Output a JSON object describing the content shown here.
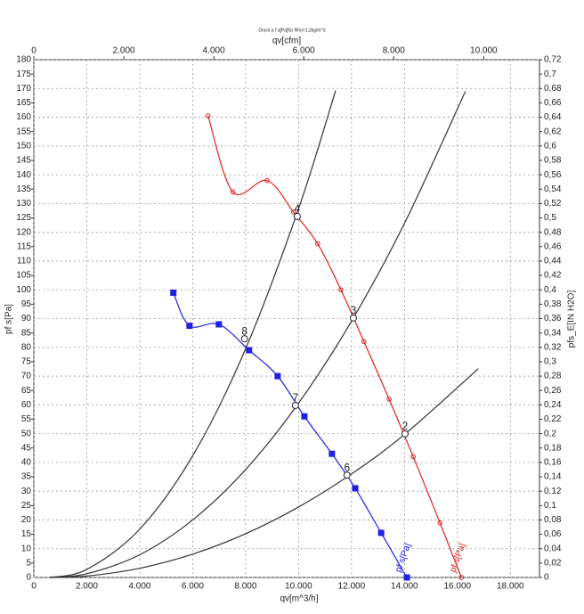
{
  "chart_data": {
    "type": "line",
    "title": "Druck p f a[Pa]für Rho=1,2kg/m^3",
    "xlabel": "qv[m^3/h]",
    "x2label": "qv[cfm]",
    "ylabel": "pf s[Pa]",
    "y2label": "pfs_E[IN H2O]",
    "xlim": [
      0,
      19100
    ],
    "xticks": [
      0,
      {
        "value": 2000,
        "label": "2.000"
      },
      {
        "value": 4000,
        "label": "4.000"
      },
      {
        "value": 6000,
        "label": "6.000"
      },
      {
        "value": 8000,
        "label": "8.000"
      },
      {
        "value": 10000,
        "label": "10.000"
      },
      {
        "value": 12000,
        "label": "12.000"
      },
      {
        "value": 14000,
        "label": "14.000"
      },
      {
        "value": 16000,
        "label": "16.000"
      },
      {
        "value": 18000,
        "label": "18.000"
      }
    ],
    "x2lim": [
      0,
      11240
    ],
    "x2ticks": [
      0,
      {
        "value": 2000,
        "label": "2.000"
      },
      {
        "value": 4000,
        "label": "4.000"
      },
      {
        "value": 6000,
        "label": "6.000"
      },
      {
        "value": 8000,
        "label": "8.000"
      },
      {
        "value": 10000,
        "label": "10.000"
      }
    ],
    "ylim": [
      0,
      180
    ],
    "yticks": [
      0,
      5,
      10,
      15,
      20,
      25,
      30,
      35,
      40,
      45,
      50,
      55,
      60,
      65,
      70,
      75,
      80,
      85,
      90,
      95,
      100,
      105,
      110,
      115,
      120,
      125,
      130,
      135,
      140,
      145,
      150,
      155,
      160,
      165,
      170,
      175,
      180
    ],
    "y2lim": [
      0,
      0.72
    ],
    "y2ticks": [
      0,
      {
        "value": 0.02,
        "label": "0,02"
      },
      {
        "value": 0.04,
        "label": "0,04"
      },
      {
        "value": 0.06,
        "label": "0,06"
      },
      {
        "value": 0.08,
        "label": "0,08"
      },
      {
        "value": 0.1,
        "label": "0,1"
      },
      {
        "value": 0.12,
        "label": "0,12"
      },
      {
        "value": 0.14,
        "label": "0,14"
      },
      {
        "value": 0.16,
        "label": "0,16"
      },
      {
        "value": 0.18,
        "label": "0,18"
      },
      {
        "value": 0.2,
        "label": "0,2"
      },
      {
        "value": 0.22,
        "label": "0,22"
      },
      {
        "value": 0.24,
        "label": "0,24"
      },
      {
        "value": 0.26,
        "label": "0,26"
      },
      {
        "value": 0.28,
        "label": "0,28"
      },
      {
        "value": 0.3,
        "label": "0,3"
      },
      {
        "value": 0.32,
        "label": "0,32"
      },
      {
        "value": 0.34,
        "label": "0,34"
      },
      {
        "value": 0.36,
        "label": "0,36"
      },
      {
        "value": 0.38,
        "label": "0,38"
      },
      {
        "value": 0.4,
        "label": "0,4"
      },
      {
        "value": 0.42,
        "label": "0,42"
      },
      {
        "value": 0.44,
        "label": "0,44"
      },
      {
        "value": 0.46,
        "label": "0,46"
      },
      {
        "value": 0.48,
        "label": "0,48"
      },
      {
        "value": 0.5,
        "label": "0,5"
      },
      {
        "value": 0.52,
        "label": "0,52"
      },
      {
        "value": 0.54,
        "label": "0,54"
      },
      {
        "value": 0.56,
        "label": "0,56"
      },
      {
        "value": 0.58,
        "label": "0,58"
      },
      {
        "value": 0.6,
        "label": "0,6"
      },
      {
        "value": 0.62,
        "label": "0,62"
      },
      {
        "value": 0.64,
        "label": "0,64"
      },
      {
        "value": 0.66,
        "label": "0,66"
      },
      {
        "value": 0.68,
        "label": "0,68"
      },
      {
        "value": 0.7,
        "label": "0,7"
      },
      {
        "value": 0.72,
        "label": "0,72"
      }
    ],
    "grid": true,
    "series": [
      {
        "name": "pf s[Pa]",
        "color": "#2020e0",
        "marker": "square",
        "x": [
          5270,
          5880,
          6990,
          8130,
          9210,
          10220,
          11260,
          12140,
          13120,
          14090
        ],
        "values": [
          99,
          87.5,
          88,
          79,
          70,
          56,
          43,
          31,
          15.5,
          0
        ]
      },
      {
        "name": "pf s[Pa]",
        "color": "#e02020",
        "marker": "circle",
        "x": [
          6580,
          7520,
          8810,
          9810,
          10720,
          11600,
          12470,
          13420,
          14330,
          15340,
          16150
        ],
        "values": [
          160.5,
          134,
          138,
          127,
          116,
          100,
          82,
          62,
          42,
          19,
          0
        ]
      }
    ],
    "system_curves": [
      {
        "color": "#333333",
        "x": [
          600,
          2000,
          4000,
          6000,
          8000,
          10000,
          11400
        ],
        "values": [
          0,
          2.8,
          16.8,
          42.3,
          79.5,
          128.2,
          169.3
        ]
      },
      {
        "color": "#333333",
        "x": [
          600,
          2000,
          4000,
          6000,
          8000,
          10000,
          12000,
          14000,
          16300
        ],
        "values": [
          0,
          1.3,
          7.9,
          20,
          37.5,
          60.6,
          89.1,
          123.1,
          169
        ]
      },
      {
        "color": "#333333",
        "x": [
          600,
          2000,
          4000,
          6000,
          8000,
          10000,
          12000,
          14000,
          16790
        ],
        "values": [
          0,
          0.5,
          3.2,
          8.1,
          15.2,
          24.5,
          36,
          49.7,
          72.6
        ]
      }
    ],
    "annotations": [
      {
        "text": "2",
        "x": 14020,
        "y": 49.9
      },
      {
        "text": "3",
        "x": 12070,
        "y": 90.2
      },
      {
        "text": "4",
        "x": 9950,
        "y": 125.5
      },
      {
        "text": "6",
        "x": 11830,
        "y": 35.6
      },
      {
        "text": "7",
        "x": 9880,
        "y": 59.8
      },
      {
        "text": "8",
        "x": 7960,
        "y": 83
      }
    ]
  }
}
